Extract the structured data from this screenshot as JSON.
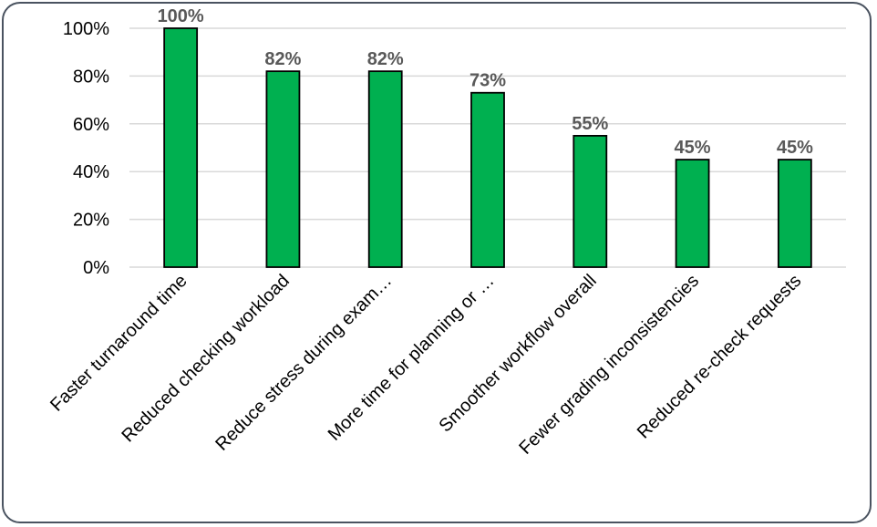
{
  "chart_data": {
    "type": "bar",
    "categories": [
      "Faster turnaround time",
      "Reduced checking workload",
      "Reduce stress during exam…",
      "More time for planning or …",
      "Smoother workflow overall",
      "Fewer grading inconsistencies",
      "Reduced re-check requests"
    ],
    "values": [
      100,
      82,
      82,
      73,
      55,
      45,
      45
    ],
    "data_labels": [
      "100%",
      "82%",
      "82%",
      "73%",
      "55%",
      "45%",
      "45%"
    ],
    "y_ticks": [
      "0%",
      "20%",
      "40%",
      "60%",
      "80%",
      "100%"
    ],
    "ylim": [
      0,
      100
    ],
    "grid": true,
    "bar_color": "#00b050",
    "title": "",
    "xlabel": "",
    "ylabel": ""
  }
}
